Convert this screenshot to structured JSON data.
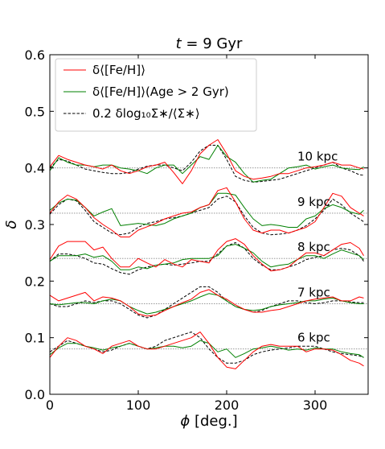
{
  "chart_data": {
    "type": "line",
    "title_prefix": "t",
    "title_rest": " = 9 Gyr",
    "xlabel_symbol": "ϕ",
    "xlabel_rest": " [deg.]",
    "ylabel": "δ",
    "xlim": [
      0,
      360
    ],
    "ylim": [
      0.0,
      0.6
    ],
    "xticks": [
      0,
      100,
      200,
      300
    ],
    "xtick_labels": [
      "0",
      "100",
      "200",
      "300"
    ],
    "yticks": [
      0.0,
      0.1,
      0.2,
      0.3,
      0.4,
      0.5,
      0.6
    ],
    "ytick_labels": [
      "0.0",
      "0.1",
      "0.2",
      "0.3",
      "0.4",
      "0.5",
      "0.6"
    ],
    "grid": false,
    "legend_position": "top-left",
    "legend": [
      {
        "series": "feh",
        "label": "δ⟨[Fe/H]⟩",
        "color": "#ff0000",
        "dash": "solid"
      },
      {
        "series": "feh_old",
        "label": "δ⟨[Fe/H]⟩(Age > 2 Gyr)",
        "color": "#008000",
        "dash": "solid"
      },
      {
        "series": "sigma",
        "label": "0.2 δlog₁₀Σ∗/⟨Σ∗⟩",
        "color": "#000000",
        "dash": "dashed"
      }
    ],
    "x": [
      0,
      10,
      20,
      30,
      40,
      50,
      60,
      70,
      80,
      90,
      100,
      110,
      120,
      130,
      140,
      150,
      160,
      170,
      180,
      190,
      200,
      210,
      220,
      230,
      240,
      250,
      260,
      270,
      280,
      290,
      300,
      310,
      320,
      330,
      340,
      350,
      355
    ],
    "groups": [
      {
        "label": "10 kpc",
        "baseline": 0.4,
        "label_x": 280,
        "label_y": 0.413,
        "feh": [
          0.402,
          0.422,
          0.415,
          0.41,
          0.405,
          0.402,
          0.398,
          0.405,
          0.395,
          0.39,
          0.395,
          0.402,
          0.405,
          0.41,
          0.392,
          0.372,
          0.395,
          0.425,
          0.44,
          0.45,
          0.425,
          0.395,
          0.385,
          0.38,
          0.382,
          0.385,
          0.39,
          0.39,
          0.395,
          0.4,
          0.402,
          0.405,
          0.41,
          0.405,
          0.405,
          0.4,
          0.398
        ],
        "feh_old": [
          0.395,
          0.418,
          0.41,
          0.405,
          0.405,
          0.402,
          0.405,
          0.405,
          0.4,
          0.398,
          0.395,
          0.39,
          0.4,
          0.405,
          0.405,
          0.39,
          0.405,
          0.42,
          0.415,
          0.44,
          0.42,
          0.41,
          0.39,
          0.375,
          0.378,
          0.38,
          0.39,
          0.4,
          0.402,
          0.405,
          0.398,
          0.402,
          0.405,
          0.4,
          0.398,
          0.397,
          0.402
        ],
        "sigma": [
          0.4,
          0.415,
          0.412,
          0.405,
          0.398,
          0.395,
          0.392,
          0.39,
          0.39,
          0.392,
          0.398,
          0.403,
          0.405,
          0.405,
          0.4,
          0.395,
          0.41,
          0.43,
          0.44,
          0.44,
          0.415,
          0.385,
          0.378,
          0.375,
          0.376,
          0.378,
          0.38,
          0.385,
          0.39,
          0.395,
          0.4,
          0.405,
          0.41,
          0.4,
          0.395,
          0.388,
          0.387
        ]
      },
      {
        "label": "9 kpc",
        "baseline": 0.32,
        "label_x": 280,
        "label_y": 0.333,
        "feh": [
          0.32,
          0.34,
          0.352,
          0.345,
          0.33,
          0.312,
          0.3,
          0.29,
          0.278,
          0.278,
          0.29,
          0.296,
          0.302,
          0.31,
          0.315,
          0.32,
          0.322,
          0.33,
          0.335,
          0.36,
          0.365,
          0.34,
          0.31,
          0.29,
          0.285,
          0.29,
          0.29,
          0.285,
          0.29,
          0.295,
          0.305,
          0.33,
          0.355,
          0.35,
          0.33,
          0.32,
          0.315
        ],
        "feh_old": [
          0.325,
          0.338,
          0.345,
          0.343,
          0.33,
          0.315,
          0.322,
          0.328,
          0.298,
          0.3,
          0.302,
          0.3,
          0.298,
          0.302,
          0.31,
          0.315,
          0.32,
          0.33,
          0.335,
          0.355,
          0.355,
          0.352,
          0.33,
          0.31,
          0.298,
          0.3,
          0.298,
          0.295,
          0.295,
          0.31,
          0.315,
          0.328,
          0.335,
          0.33,
          0.322,
          0.318,
          0.325
        ],
        "sigma": [
          0.318,
          0.335,
          0.345,
          0.342,
          0.325,
          0.305,
          0.295,
          0.285,
          0.282,
          0.285,
          0.295,
          0.302,
          0.305,
          0.31,
          0.312,
          0.315,
          0.32,
          0.325,
          0.33,
          0.345,
          0.35,
          0.34,
          0.315,
          0.295,
          0.285,
          0.282,
          0.283,
          0.285,
          0.29,
          0.298,
          0.31,
          0.325,
          0.345,
          0.335,
          0.32,
          0.31,
          0.305
        ]
      },
      {
        "label": "8 kpc",
        "baseline": 0.24,
        "label_x": 280,
        "label_y": 0.253,
        "feh": [
          0.238,
          0.262,
          0.27,
          0.27,
          0.27,
          0.255,
          0.26,
          0.24,
          0.225,
          0.225,
          0.24,
          0.232,
          0.225,
          0.238,
          0.23,
          0.225,
          0.238,
          0.235,
          0.232,
          0.255,
          0.27,
          0.275,
          0.265,
          0.245,
          0.23,
          0.218,
          0.22,
          0.225,
          0.238,
          0.25,
          0.25,
          0.245,
          0.255,
          0.265,
          0.268,
          0.258,
          0.245
        ],
        "feh_old": [
          0.235,
          0.245,
          0.245,
          0.245,
          0.248,
          0.242,
          0.245,
          0.235,
          0.22,
          0.22,
          0.225,
          0.222,
          0.228,
          0.23,
          0.232,
          0.238,
          0.24,
          0.24,
          0.24,
          0.245,
          0.262,
          0.265,
          0.258,
          0.25,
          0.235,
          0.225,
          0.228,
          0.23,
          0.238,
          0.245,
          0.245,
          0.24,
          0.248,
          0.255,
          0.25,
          0.245,
          0.238
        ],
        "sigma": [
          0.235,
          0.248,
          0.248,
          0.245,
          0.24,
          0.232,
          0.23,
          0.222,
          0.215,
          0.212,
          0.22,
          0.225,
          0.228,
          0.23,
          0.228,
          0.23,
          0.232,
          0.235,
          0.235,
          0.248,
          0.262,
          0.268,
          0.258,
          0.24,
          0.228,
          0.22,
          0.22,
          0.225,
          0.23,
          0.238,
          0.242,
          0.245,
          0.255,
          0.258,
          0.255,
          0.245,
          0.235
        ]
      },
      {
        "label": "7 kpc",
        "baseline": 0.16,
        "label_x": 280,
        "label_y": 0.173,
        "feh": [
          0.175,
          0.165,
          0.17,
          0.175,
          0.18,
          0.165,
          0.172,
          0.17,
          0.165,
          0.155,
          0.142,
          0.138,
          0.14,
          0.148,
          0.155,
          0.162,
          0.168,
          0.18,
          0.185,
          0.175,
          0.168,
          0.158,
          0.15,
          0.145,
          0.145,
          0.148,
          0.15,
          0.155,
          0.16,
          0.165,
          0.168,
          0.17,
          0.172,
          0.165,
          0.165,
          0.172,
          0.17
        ],
        "feh_old": [
          0.16,
          0.158,
          0.16,
          0.162,
          0.162,
          0.16,
          0.165,
          0.168,
          0.165,
          0.155,
          0.148,
          0.142,
          0.145,
          0.15,
          0.155,
          0.16,
          0.165,
          0.172,
          0.178,
          0.175,
          0.165,
          0.155,
          0.15,
          0.148,
          0.15,
          0.155,
          0.158,
          0.16,
          0.162,
          0.165,
          0.165,
          0.168,
          0.17,
          0.165,
          0.162,
          0.16,
          0.16
        ],
        "sigma": [
          0.16,
          0.155,
          0.155,
          0.16,
          0.165,
          0.162,
          0.165,
          0.165,
          0.16,
          0.15,
          0.14,
          0.135,
          0.14,
          0.15,
          0.16,
          0.17,
          0.18,
          0.19,
          0.19,
          0.18,
          0.165,
          0.155,
          0.15,
          0.145,
          0.148,
          0.155,
          0.16,
          0.165,
          0.165,
          0.162,
          0.16,
          0.162,
          0.165,
          0.165,
          0.163,
          0.162,
          0.162
        ]
      },
      {
        "label": "6 kpc",
        "baseline": 0.08,
        "label_x": 280,
        "label_y": 0.093,
        "feh": [
          0.065,
          0.085,
          0.1,
          0.095,
          0.085,
          0.08,
          0.072,
          0.085,
          0.09,
          0.095,
          0.085,
          0.08,
          0.08,
          0.085,
          0.09,
          0.095,
          0.1,
          0.11,
          0.09,
          0.065,
          0.048,
          0.045,
          0.06,
          0.075,
          0.085,
          0.088,
          0.085,
          0.085,
          0.085,
          0.075,
          0.08,
          0.08,
          0.078,
          0.07,
          0.06,
          0.055,
          0.05
        ],
        "feh_old": [
          0.07,
          0.082,
          0.09,
          0.09,
          0.085,
          0.082,
          0.078,
          0.082,
          0.085,
          0.09,
          0.085,
          0.08,
          0.082,
          0.085,
          0.085,
          0.082,
          0.085,
          0.095,
          0.09,
          0.075,
          0.08,
          0.065,
          0.072,
          0.08,
          0.082,
          0.085,
          0.082,
          0.078,
          0.08,
          0.078,
          0.082,
          0.08,
          0.08,
          0.075,
          0.072,
          0.07,
          0.065
        ],
        "sigma": [
          0.075,
          0.085,
          0.095,
          0.09,
          0.085,
          0.08,
          0.075,
          0.078,
          0.085,
          0.09,
          0.085,
          0.08,
          0.085,
          0.095,
          0.1,
          0.105,
          0.11,
          0.1,
          0.08,
          0.065,
          0.055,
          0.055,
          0.06,
          0.07,
          0.075,
          0.078,
          0.08,
          0.082,
          0.085,
          0.085,
          0.085,
          0.08,
          0.075,
          0.072,
          0.07,
          0.068,
          0.065
        ]
      }
    ]
  }
}
